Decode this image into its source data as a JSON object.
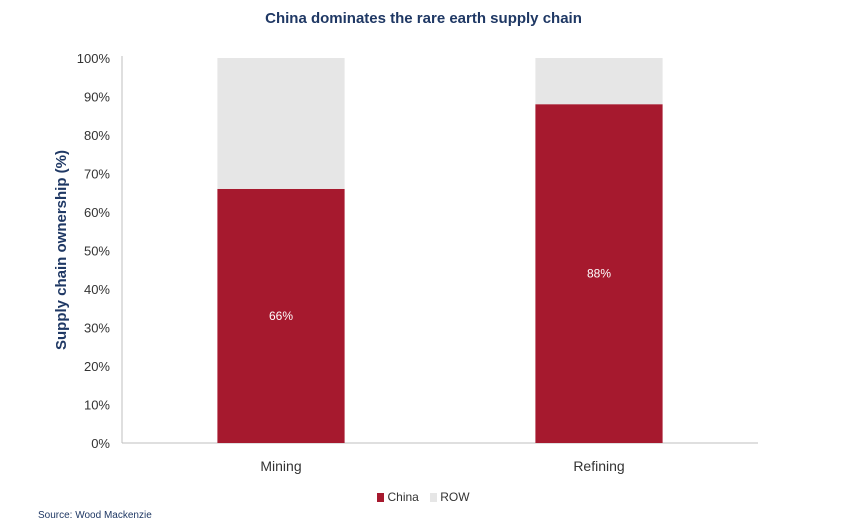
{
  "chart_data": {
    "type": "bar",
    "stacked": true,
    "title": "China dominates the rare earth supply chain",
    "ylabel": "Supply chain ownership (%)",
    "xlabel": "",
    "categories": [
      "Mining",
      "Refining"
    ],
    "series": [
      {
        "name": "China",
        "values": [
          66,
          88
        ],
        "color": "#a6192e",
        "data_labels": [
          "66%",
          "88%"
        ]
      },
      {
        "name": "ROW",
        "values": [
          34,
          12
        ],
        "color": "#e6e6e6"
      }
    ],
    "ylim": [
      0,
      100
    ],
    "yticks": [
      "0%",
      "10%",
      "20%",
      "30%",
      "40%",
      "50%",
      "60%",
      "70%",
      "80%",
      "90%",
      "100%"
    ],
    "grid": false,
    "legend_position": "bottom"
  },
  "source": "Source: Wood Mackenzie"
}
